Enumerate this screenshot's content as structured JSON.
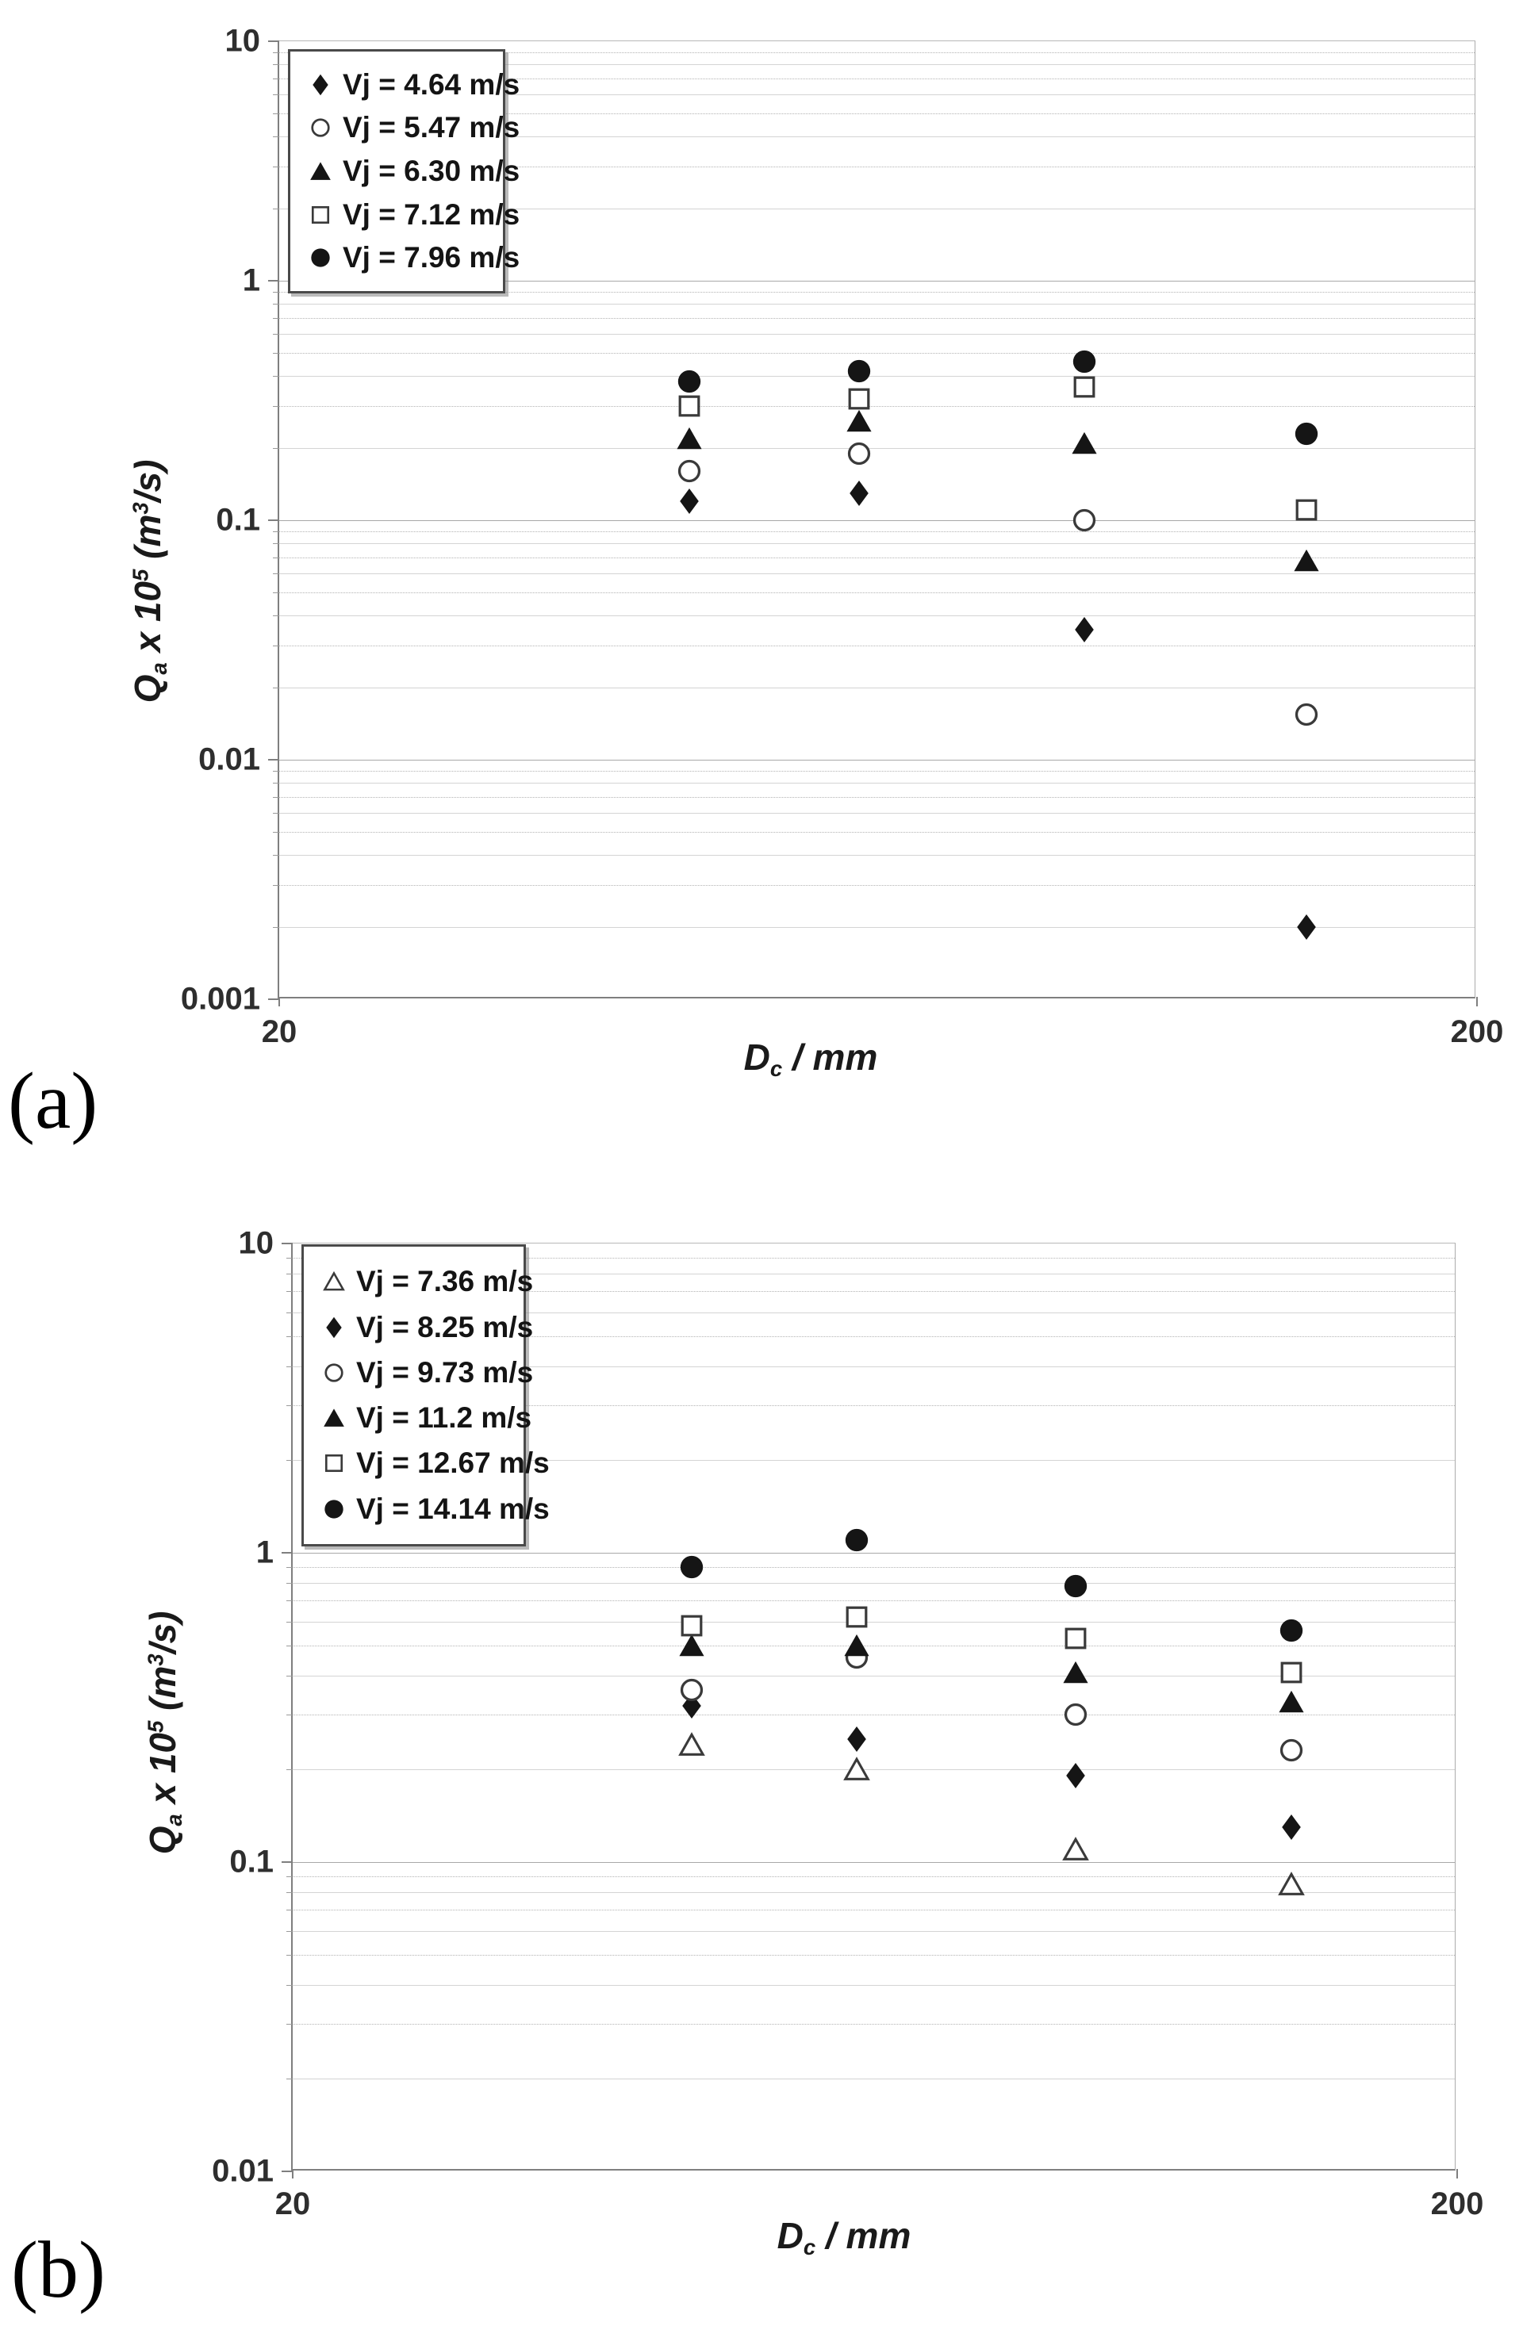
{
  "figure_labels": {
    "a": "(a)",
    "b": "(b)"
  },
  "chart_data": [
    {
      "id": "a",
      "type": "scatter",
      "x_scale": "log",
      "y_scale": "log",
      "xlim": [
        20,
        200
      ],
      "ylim": [
        0.001,
        10
      ],
      "x_ticks": [
        "20",
        "200"
      ],
      "y_ticks": [
        "10",
        "1",
        "0.1",
        "0.01",
        "0.001"
      ],
      "xlabel": "Dc / mm",
      "ylabel": "Qa x 10^5 (m^3/s)",
      "labels": {
        "x": {
          "base": "D",
          "sub": "c",
          "rest": " / mm"
        },
        "y": {
          "base": "Q",
          "sub": "a",
          "mul": " x 10",
          "exp": "5",
          "unit_a": " (m",
          "unit_exp": "3",
          "unit_b": "/s)"
        }
      },
      "grid": "log-major-minor",
      "legend_position": "top-left",
      "x": [
        44,
        61,
        94,
        144
      ],
      "series": [
        {
          "name": "Vj = 4.64 m/s",
          "marker": "diamond-filled",
          "values": [
            0.12,
            0.13,
            0.035,
            0.002
          ]
        },
        {
          "name": "Vj = 5.47 m/s",
          "marker": "circle-open",
          "values": [
            0.16,
            0.19,
            0.1,
            0.0155
          ]
        },
        {
          "name": "Vj = 6.30 m/s",
          "marker": "triangle-filled",
          "values": [
            0.22,
            0.26,
            0.21,
            0.068
          ]
        },
        {
          "name": "Vj = 7.12 m/s",
          "marker": "square-open",
          "values": [
            0.3,
            0.32,
            0.36,
            0.11
          ]
        },
        {
          "name": "Vj = 7.96 m/s",
          "marker": "circle-filled",
          "values": [
            0.38,
            0.42,
            0.46,
            0.23
          ]
        }
      ]
    },
    {
      "id": "b",
      "type": "scatter",
      "x_scale": "log",
      "y_scale": "log",
      "xlim": [
        20,
        200
      ],
      "ylim": [
        0.01,
        10
      ],
      "x_ticks": [
        "20",
        "200"
      ],
      "y_ticks": [
        "10",
        "1",
        "0.1",
        "0.01"
      ],
      "xlabel": "Dc / mm",
      "ylabel": "Qa x 10^5 (m^3/s)",
      "labels": {
        "x": {
          "base": "D",
          "sub": "c",
          "rest": " / mm"
        },
        "y": {
          "base": "Q",
          "sub": "a",
          "mul": " x 10",
          "exp": "5",
          "unit_a": " (m",
          "unit_exp": "3",
          "unit_b": "/s)"
        }
      },
      "grid": "log-major-minor",
      "legend_position": "top-left",
      "x": [
        44,
        61,
        94,
        144
      ],
      "series": [
        {
          "name": "Vj = 7.36 m/s",
          "marker": "triangle-open",
          "values": [
            0.24,
            0.2,
            0.11,
            0.085
          ]
        },
        {
          "name": "Vj = 8.25 m/s",
          "marker": "diamond-filled",
          "values": [
            0.32,
            0.25,
            0.19,
            0.13
          ]
        },
        {
          "name": "Vj = 9.73 m/s",
          "marker": "circle-open",
          "values": [
            0.36,
            0.46,
            0.3,
            0.23
          ]
        },
        {
          "name": "Vj = 11.2 m/s",
          "marker": "triangle-filled",
          "values": [
            0.5,
            0.5,
            0.41,
            0.33
          ]
        },
        {
          "name": "Vj = 12.67 m/s",
          "marker": "square-open",
          "values": [
            0.58,
            0.62,
            0.53,
            0.41
          ]
        },
        {
          "name": "Vj = 14.14 m/s",
          "marker": "circle-filled",
          "values": [
            0.9,
            1.1,
            0.78,
            0.56
          ]
        }
      ]
    }
  ]
}
